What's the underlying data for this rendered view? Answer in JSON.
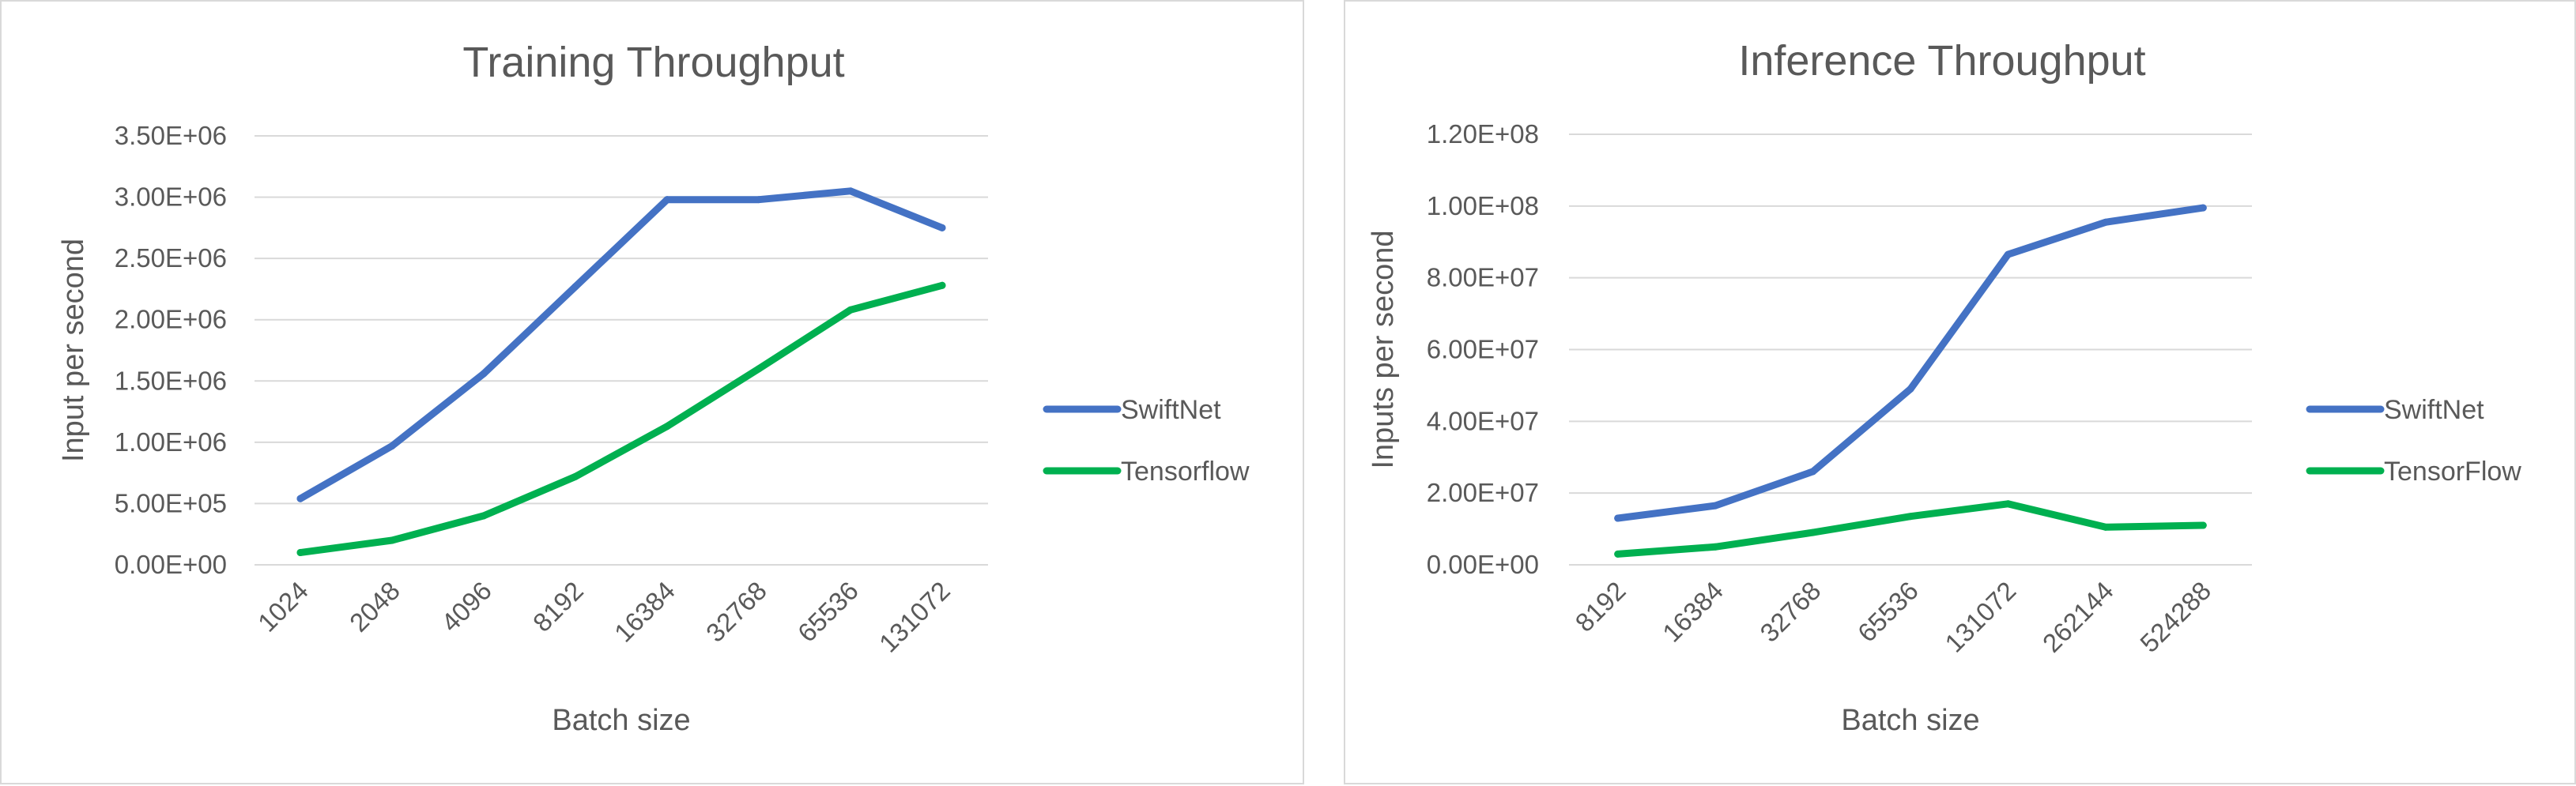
{
  "chart_data": [
    {
      "type": "line",
      "title": "Training Throughput",
      "xlabel": "Batch size",
      "ylabel": "Input per second",
      "categories": [
        "1024",
        "2048",
        "4096",
        "8192",
        "16384",
        "32768",
        "65536",
        "131072"
      ],
      "yticks": [
        "0.00E+00",
        "5.00E+05",
        "1.00E+06",
        "1.50E+06",
        "2.00E+06",
        "2.50E+06",
        "3.00E+06",
        "3.50E+06"
      ],
      "ylim": [
        0,
        3500000
      ],
      "grid": true,
      "legend_position": "right",
      "series": [
        {
          "name": "SwiftNet",
          "color": "#4472c4",
          "values": [
            540000,
            970000,
            1560000,
            2270000,
            2980000,
            2980000,
            3050000,
            2750000
          ]
        },
        {
          "name": "Tensorflow",
          "color": "#00b050",
          "values": [
            100000,
            200000,
            400000,
            720000,
            1130000,
            1600000,
            2080000,
            2280000
          ]
        }
      ]
    },
    {
      "type": "line",
      "title": "Inference Throughput",
      "xlabel": "Batch size",
      "ylabel": "Inputs per second",
      "categories": [
        "8192",
        "16384",
        "32768",
        "65536",
        "131072",
        "262144",
        "524288"
      ],
      "yticks": [
        "0.00E+00",
        "2.00E+07",
        "4.00E+07",
        "6.00E+07",
        "8.00E+07",
        "1.00E+08",
        "1.20E+08"
      ],
      "ylim": [
        0,
        120000000
      ],
      "grid": true,
      "legend_position": "right",
      "series": [
        {
          "name": "SwiftNet",
          "color": "#4472c4",
          "values": [
            13000000,
            16500000,
            26000000,
            49000000,
            86500000,
            95500000,
            99500000
          ]
        },
        {
          "name": "TensorFlow",
          "color": "#00b050",
          "values": [
            3000000,
            5000000,
            9000000,
            13500000,
            17000000,
            10500000,
            11000000
          ]
        }
      ]
    }
  ]
}
